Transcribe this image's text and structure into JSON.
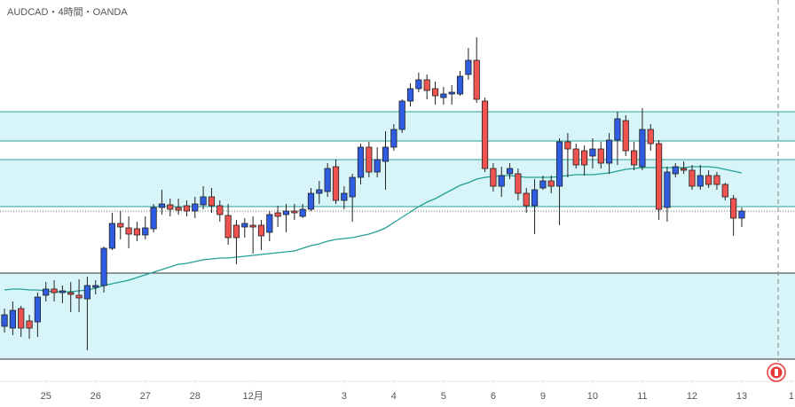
{
  "chart_data": {
    "type": "candlestick",
    "title": "AUDCAD・4時間・OANDA",
    "up_color": "#2f5ce0",
    "down_color": "#ef5350",
    "xlim": [
      -0.54,
      95.43
    ],
    "ylim": [
      575,
      1000
    ],
    "xticks": [
      {
        "value": 5,
        "label": "25"
      },
      {
        "value": 11,
        "label": "26"
      },
      {
        "value": 17,
        "label": "27"
      },
      {
        "value": 23,
        "label": "28"
      },
      {
        "value": 30,
        "label": "12月"
      },
      {
        "value": 41,
        "label": "3"
      },
      {
        "value": 47,
        "label": "4"
      },
      {
        "value": 53,
        "label": "5"
      },
      {
        "value": 59,
        "label": "6"
      },
      {
        "value": 65,
        "label": "9"
      },
      {
        "value": 71,
        "label": "10"
      },
      {
        "value": 77,
        "label": "11"
      },
      {
        "value": 83,
        "label": "12"
      },
      {
        "value": 89,
        "label": "13"
      },
      {
        "value": 95,
        "label": "1"
      }
    ],
    "zones": [
      {
        "from": 841,
        "to": 874,
        "color": "#2aa198"
      },
      {
        "from": 767,
        "to": 820,
        "color": "#2aa198"
      },
      {
        "from": 595,
        "to": 692,
        "color": "#333333"
      }
    ],
    "last_price": 762,
    "now_x": 93.4,
    "open": [
      632,
      630,
      652,
      638,
      637,
      667,
      674,
      670,
      670,
      667,
      663,
      676,
      678,
      720,
      748,
      743,
      742,
      735,
      742,
      766,
      769,
      766,
      768,
      762,
      769,
      778,
      768,
      757,
      746,
      744,
      746,
      746,
      738,
      760,
      758,
      762,
      756,
      764,
      782,
      784,
      812,
      774,
      778,
      800,
      834,
      806,
      818,
      834,
      854,
      886,
      900,
      910,
      900,
      890,
      894,
      894,
      916,
      932,
      886,
      810,
      790,
      804,
      804,
      782,
      768,
      788,
      796,
      790,
      840,
      832,
      830,
      824,
      832,
      816,
      842,
      864,
      830,
      812,
      854,
      838,
      766,
      804,
      810,
      808,
      790,
      802,
      802,
      792,
      776,
      754
    ],
    "high": [
      652,
      660,
      655,
      645,
      670,
      682,
      684,
      678,
      682,
      685,
      688,
      684,
      722,
      760,
      762,
      756,
      750,
      756,
      770,
      786,
      776,
      776,
      774,
      778,
      790,
      788,
      774,
      770,
      752,
      754,
      756,
      752,
      762,
      768,
      770,
      770,
      770,
      788,
      796,
      816,
      820,
      790,
      804,
      838,
      840,
      834,
      852,
      860,
      888,
      906,
      918,
      916,
      908,
      902,
      904,
      920,
      946,
      958,
      890,
      816,
      812,
      816,
      810,
      788,
      798,
      802,
      802,
      844,
      850,
      838,
      836,
      844,
      840,
      850,
      874,
      870,
      840,
      878,
      860,
      842,
      812,
      816,
      818,
      814,
      814,
      808,
      806,
      794,
      780,
      766
    ],
    "low": [
      625,
      622,
      620,
      618,
      620,
      660,
      660,
      658,
      648,
      648,
      605,
      668,
      670,
      718,
      730,
      720,
      728,
      730,
      738,
      758,
      756,
      758,
      756,
      754,
      764,
      760,
      750,
      724,
      702,
      732,
      714,
      718,
      728,
      744,
      738,
      752,
      754,
      762,
      770,
      778,
      770,
      764,
      750,
      792,
      800,
      800,
      786,
      830,
      850,
      880,
      896,
      888,
      882,
      882,
      882,
      892,
      910,
      884,
      806,
      784,
      778,
      798,
      774,
      760,
      736,
      786,
      782,
      746,
      800,
      810,
      802,
      810,
      810,
      804,
      814,
      824,
      808,
      808,
      830,
      752,
      750,
      800,
      804,
      786,
      786,
      788,
      786,
      774,
      734,
      744
    ],
    "close": [
      645,
      650,
      630,
      630,
      665,
      674,
      670,
      672,
      668,
      664,
      678,
      678,
      720,
      748,
      744,
      736,
      735,
      743,
      766,
      770,
      764,
      763,
      762,
      770,
      778,
      768,
      758,
      732,
      732,
      748,
      744,
      734,
      758,
      756,
      762,
      760,
      764,
      782,
      786,
      810,
      774,
      782,
      800,
      834,
      806,
      820,
      834,
      854,
      886,
      900,
      910,
      898,
      892,
      894,
      896,
      914,
      932,
      888,
      810,
      790,
      802,
      810,
      782,
      768,
      786,
      796,
      790,
      840,
      832,
      814,
      814,
      832,
      816,
      842,
      866,
      830,
      814,
      854,
      838,
      764,
      806,
      812,
      808,
      790,
      802,
      792,
      792,
      778,
      754,
      762
    ],
    "ma": {
      "color": "#22a095",
      "values": [
        673,
        674,
        674,
        673,
        673,
        672,
        671,
        671,
        671,
        672,
        673,
        675,
        678,
        680,
        682,
        684,
        687,
        690,
        693,
        696,
        699,
        702,
        703,
        705,
        707,
        708,
        709,
        709,
        710,
        711,
        712,
        713,
        714,
        715,
        716,
        717,
        720,
        723,
        725,
        728,
        730,
        731,
        732,
        734,
        736,
        739,
        743,
        749,
        755,
        761,
        767,
        772,
        776,
        781,
        786,
        791,
        794,
        798,
        800,
        801,
        802,
        802,
        801,
        800,
        800,
        800,
        800,
        801,
        802,
        803,
        803,
        803,
        804,
        805,
        807,
        809,
        810,
        811,
        811,
        811,
        811,
        811,
        811,
        812,
        812,
        812,
        811,
        809,
        807,
        805
      ]
    }
  }
}
